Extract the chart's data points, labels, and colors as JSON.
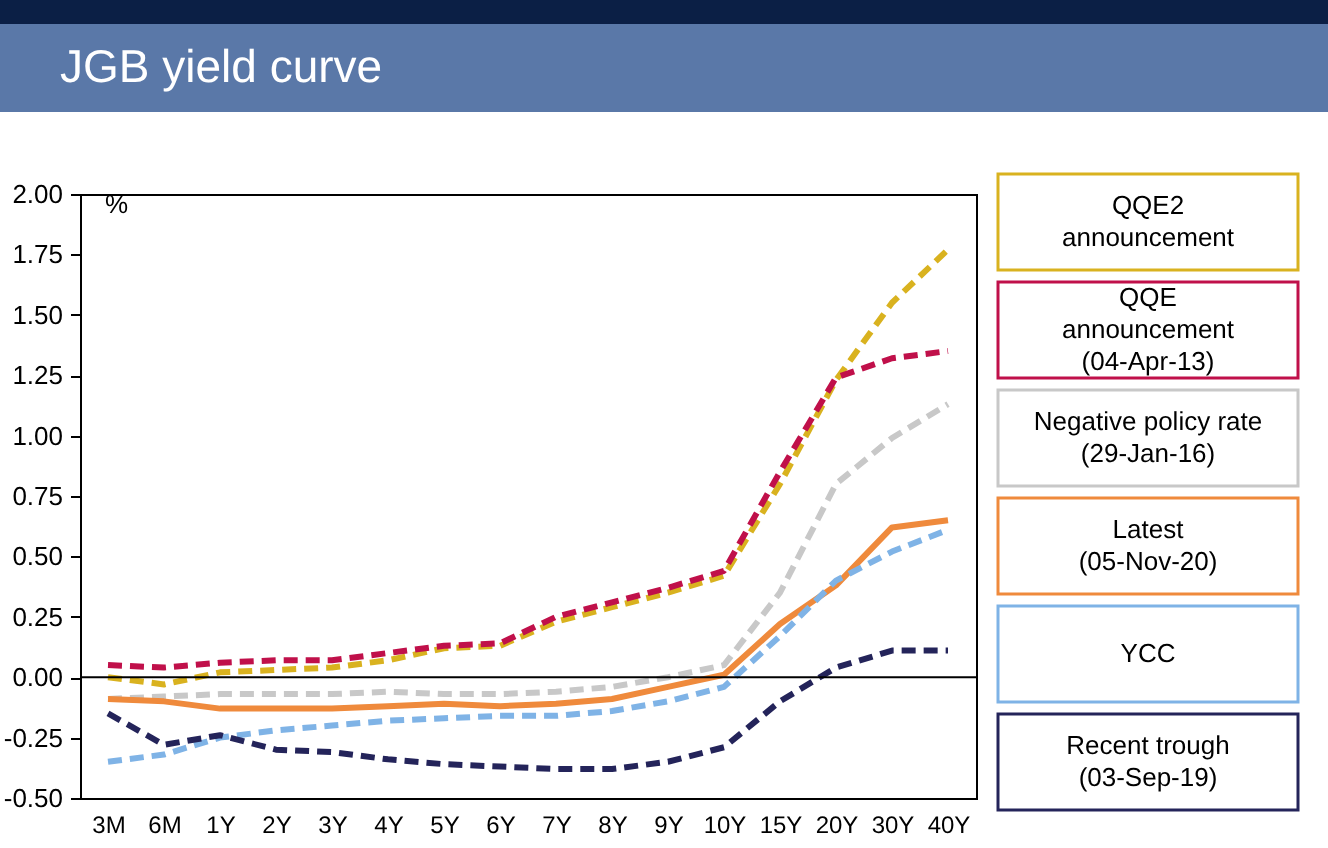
{
  "chart_data": {
    "type": "line",
    "title": "JGB yield curve",
    "ylabel": "%",
    "categories": [
      "3M",
      "6M",
      "1Y",
      "2Y",
      "3Y",
      "4Y",
      "5Y",
      "6Y",
      "7Y",
      "8Y",
      "9Y",
      "10Y",
      "15Y",
      "20Y",
      "30Y",
      "40Y"
    ],
    "series": [
      {
        "name": "QQE2\nannouncement",
        "color": "#d9b21f",
        "line_style": "dashed",
        "values": [
          0.0,
          -0.03,
          0.02,
          0.03,
          0.04,
          0.07,
          0.12,
          0.13,
          0.23,
          0.29,
          0.35,
          0.42,
          0.8,
          1.23,
          1.55,
          1.77
        ]
      },
      {
        "name": "QQE\nannouncement\n(04-Apr-13)",
        "color": "#c0104a",
        "line_style": "dashed",
        "values": [
          0.05,
          0.04,
          0.06,
          0.07,
          0.07,
          0.1,
          0.13,
          0.14,
          0.25,
          0.31,
          0.37,
          0.44,
          0.85,
          1.24,
          1.32,
          1.35
        ]
      },
      {
        "name": "Negative policy rate\n(29-Jan-16)",
        "color": "#c8c8c8",
        "line_style": "dashed",
        "values": [
          -0.09,
          -0.08,
          -0.07,
          -0.07,
          -0.07,
          -0.06,
          -0.07,
          -0.07,
          -0.06,
          -0.04,
          0.0,
          0.05,
          0.35,
          0.8,
          0.99,
          1.13
        ]
      },
      {
        "name": "Latest\n(05-Nov-20)",
        "color": "#ef8a3c",
        "line_style": "solid",
        "values": [
          -0.09,
          -0.1,
          -0.13,
          -0.13,
          -0.13,
          -0.12,
          -0.11,
          -0.12,
          -0.11,
          -0.09,
          -0.04,
          0.01,
          0.22,
          0.38,
          0.62,
          0.65
        ]
      },
      {
        "name": "YCC",
        "color": "#7fb3e6",
        "line_style": "dashed",
        "values": [
          -0.35,
          -0.32,
          -0.25,
          -0.22,
          -0.2,
          -0.18,
          -0.17,
          -0.16,
          -0.16,
          -0.14,
          -0.1,
          -0.04,
          0.17,
          0.4,
          0.52,
          0.61
        ]
      },
      {
        "name": "Recent trough\n(03-Sep-19)",
        "color": "#24245a",
        "line_style": "dashed",
        "values": [
          -0.15,
          -0.28,
          -0.24,
          -0.3,
          -0.31,
          -0.34,
          -0.36,
          -0.37,
          -0.38,
          -0.38,
          -0.35,
          -0.29,
          -0.1,
          0.04,
          0.11,
          0.11
        ]
      }
    ],
    "ylim": [
      -0.5,
      2.0
    ],
    "yticks": [
      {
        "value": -0.5,
        "label": "-0.50"
      },
      {
        "value": -0.25,
        "label": "-0.25"
      },
      {
        "value": 0,
        "label": "0.00"
      },
      {
        "value": 0.25,
        "label": "0.25"
      },
      {
        "value": 0.5,
        "label": "0.50"
      },
      {
        "value": 0.75,
        "label": "0.75"
      },
      {
        "value": 1.0,
        "label": "1.00"
      },
      {
        "value": 1.25,
        "label": "1.25"
      },
      {
        "value": 1.5,
        "label": "1.50"
      },
      {
        "value": 1.75,
        "label": "1.75"
      },
      {
        "value": 2.0,
        "label": "2.00"
      }
    ],
    "ref_lines": [
      {
        "axis": "y",
        "value": 0,
        "color": "#000000"
      }
    ],
    "grid": false,
    "legend": "right"
  }
}
